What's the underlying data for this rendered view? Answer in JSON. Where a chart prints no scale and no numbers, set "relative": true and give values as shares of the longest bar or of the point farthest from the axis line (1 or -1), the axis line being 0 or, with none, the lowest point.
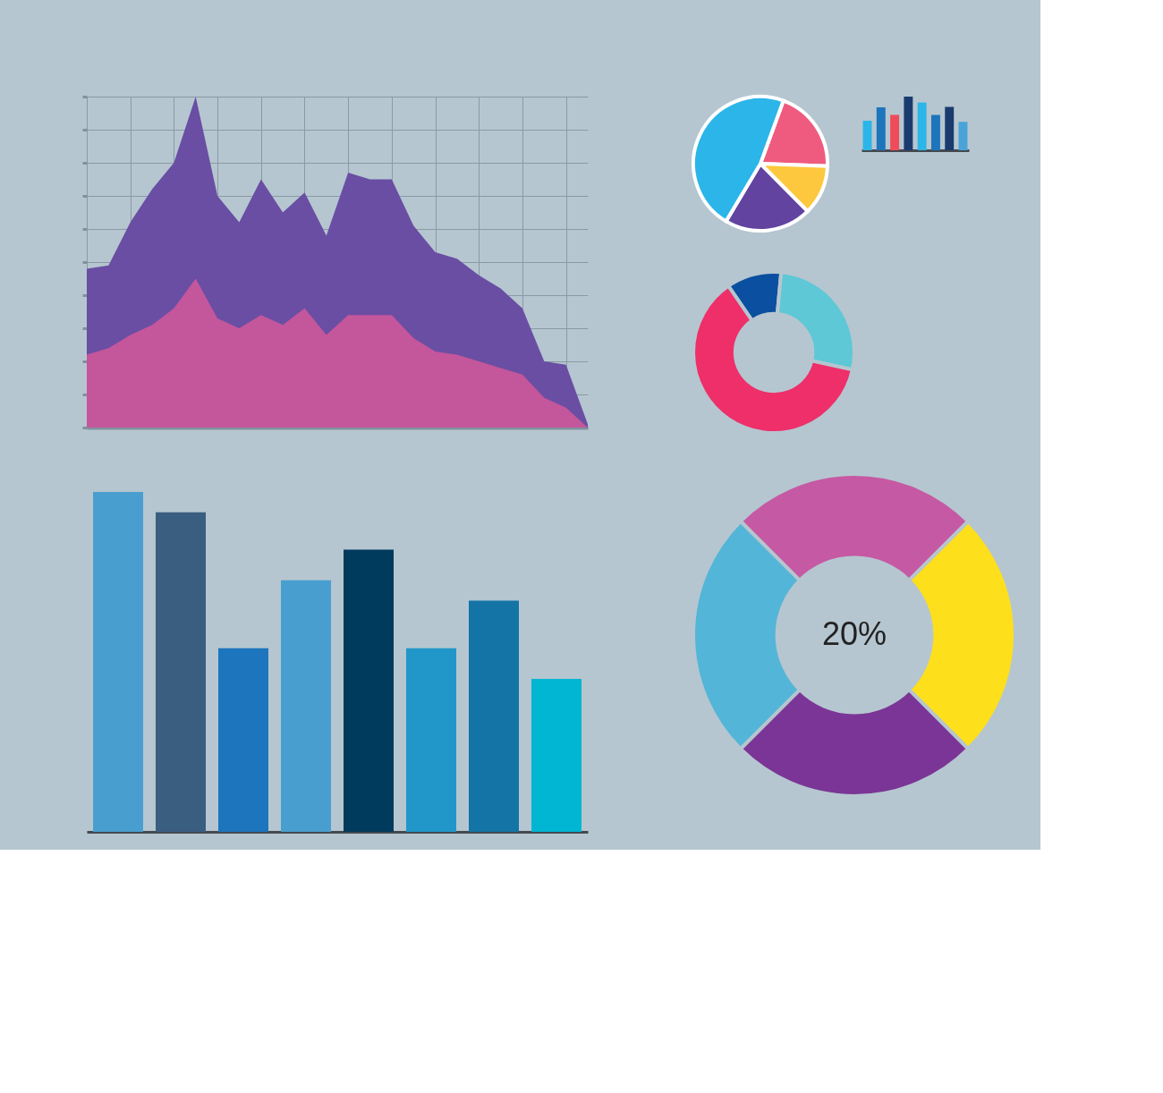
{
  "chart_data": [
    {
      "type": "area",
      "relative": true,
      "grid": true,
      "categories": [
        null,
        null,
        null,
        null,
        null,
        null,
        null,
        null,
        null,
        null,
        null,
        null,
        null,
        null,
        null,
        null,
        null,
        null,
        null,
        null,
        null,
        null,
        null,
        null
      ],
      "series": [
        {
          "color": "#6a4ea3",
          "values": [
            0.48,
            0.49,
            0.62,
            0.72,
            0.8,
            1,
            0.7,
            0.62,
            0.75,
            0.65,
            0.71,
            0.58,
            0.77,
            0.75,
            0.75,
            0.61,
            0.53,
            0.51,
            0.46,
            0.42,
            0.36,
            0.2,
            0.19,
            0.01
          ]
        },
        {
          "color": "#c4569c",
          "values": [
            0.22,
            0.24,
            0.28,
            0.31,
            0.36,
            0.45,
            0.33,
            0.3,
            0.34,
            0.31,
            0.36,
            0.28,
            0.34,
            0.34,
            0.34,
            0.27,
            0.23,
            0.22,
            0.2,
            0.18,
            0.16,
            0.09,
            0.06,
            0.0
          ]
        }
      ]
    },
    {
      "type": "pie",
      "categories": [
        null,
        null,
        null,
        null
      ],
      "values": [
        20,
        12,
        21,
        47
      ],
      "colors": [
        "#ef5b7f",
        "#fdc83d",
        "#6343a0",
        "#2cb5e8"
      ]
    },
    {
      "type": "bar",
      "relative": true,
      "categories": [
        null,
        null,
        null,
        null,
        null,
        null,
        null,
        null
      ],
      "values": [
        0.55,
        0.8,
        0.66,
        1,
        0.89,
        0.66,
        0.81,
        0.53
      ],
      "colors": [
        "#2cb5e8",
        "#1d75bc",
        "#ef4b5a",
        "#1a3b6e",
        "#2cb5e8",
        "#1d75bc",
        "#1a3b6e",
        "#4aa3d8"
      ]
    },
    {
      "type": "donut",
      "categories": [
        null,
        null,
        null
      ],
      "values": [
        11,
        27,
        62
      ],
      "colors": [
        "#0a4fa0",
        "#5ec8d6",
        "#ee2f6a"
      ]
    },
    {
      "type": "bar",
      "relative": true,
      "categories": [
        null,
        null,
        null,
        null,
        null,
        null,
        null,
        null
      ],
      "values": [
        1,
        0.94,
        0.54,
        0.74,
        0.83,
        0.54,
        0.68,
        0.45
      ],
      "colors": [
        "#489fcf",
        "#3a5e80",
        "#1c75bd",
        "#489fcf",
        "#003a5c",
        "#2196c8",
        "#1474a6",
        "#00b6d2"
      ]
    },
    {
      "type": "donut",
      "categories": [
        null,
        null,
        null,
        null
      ],
      "values": [
        25,
        25,
        25,
        25
      ],
      "colors": [
        "#c659a3",
        "#fedf1b",
        "#7b3596",
        "#53b5d7"
      ],
      "annotations": [
        "20%"
      ]
    }
  ]
}
